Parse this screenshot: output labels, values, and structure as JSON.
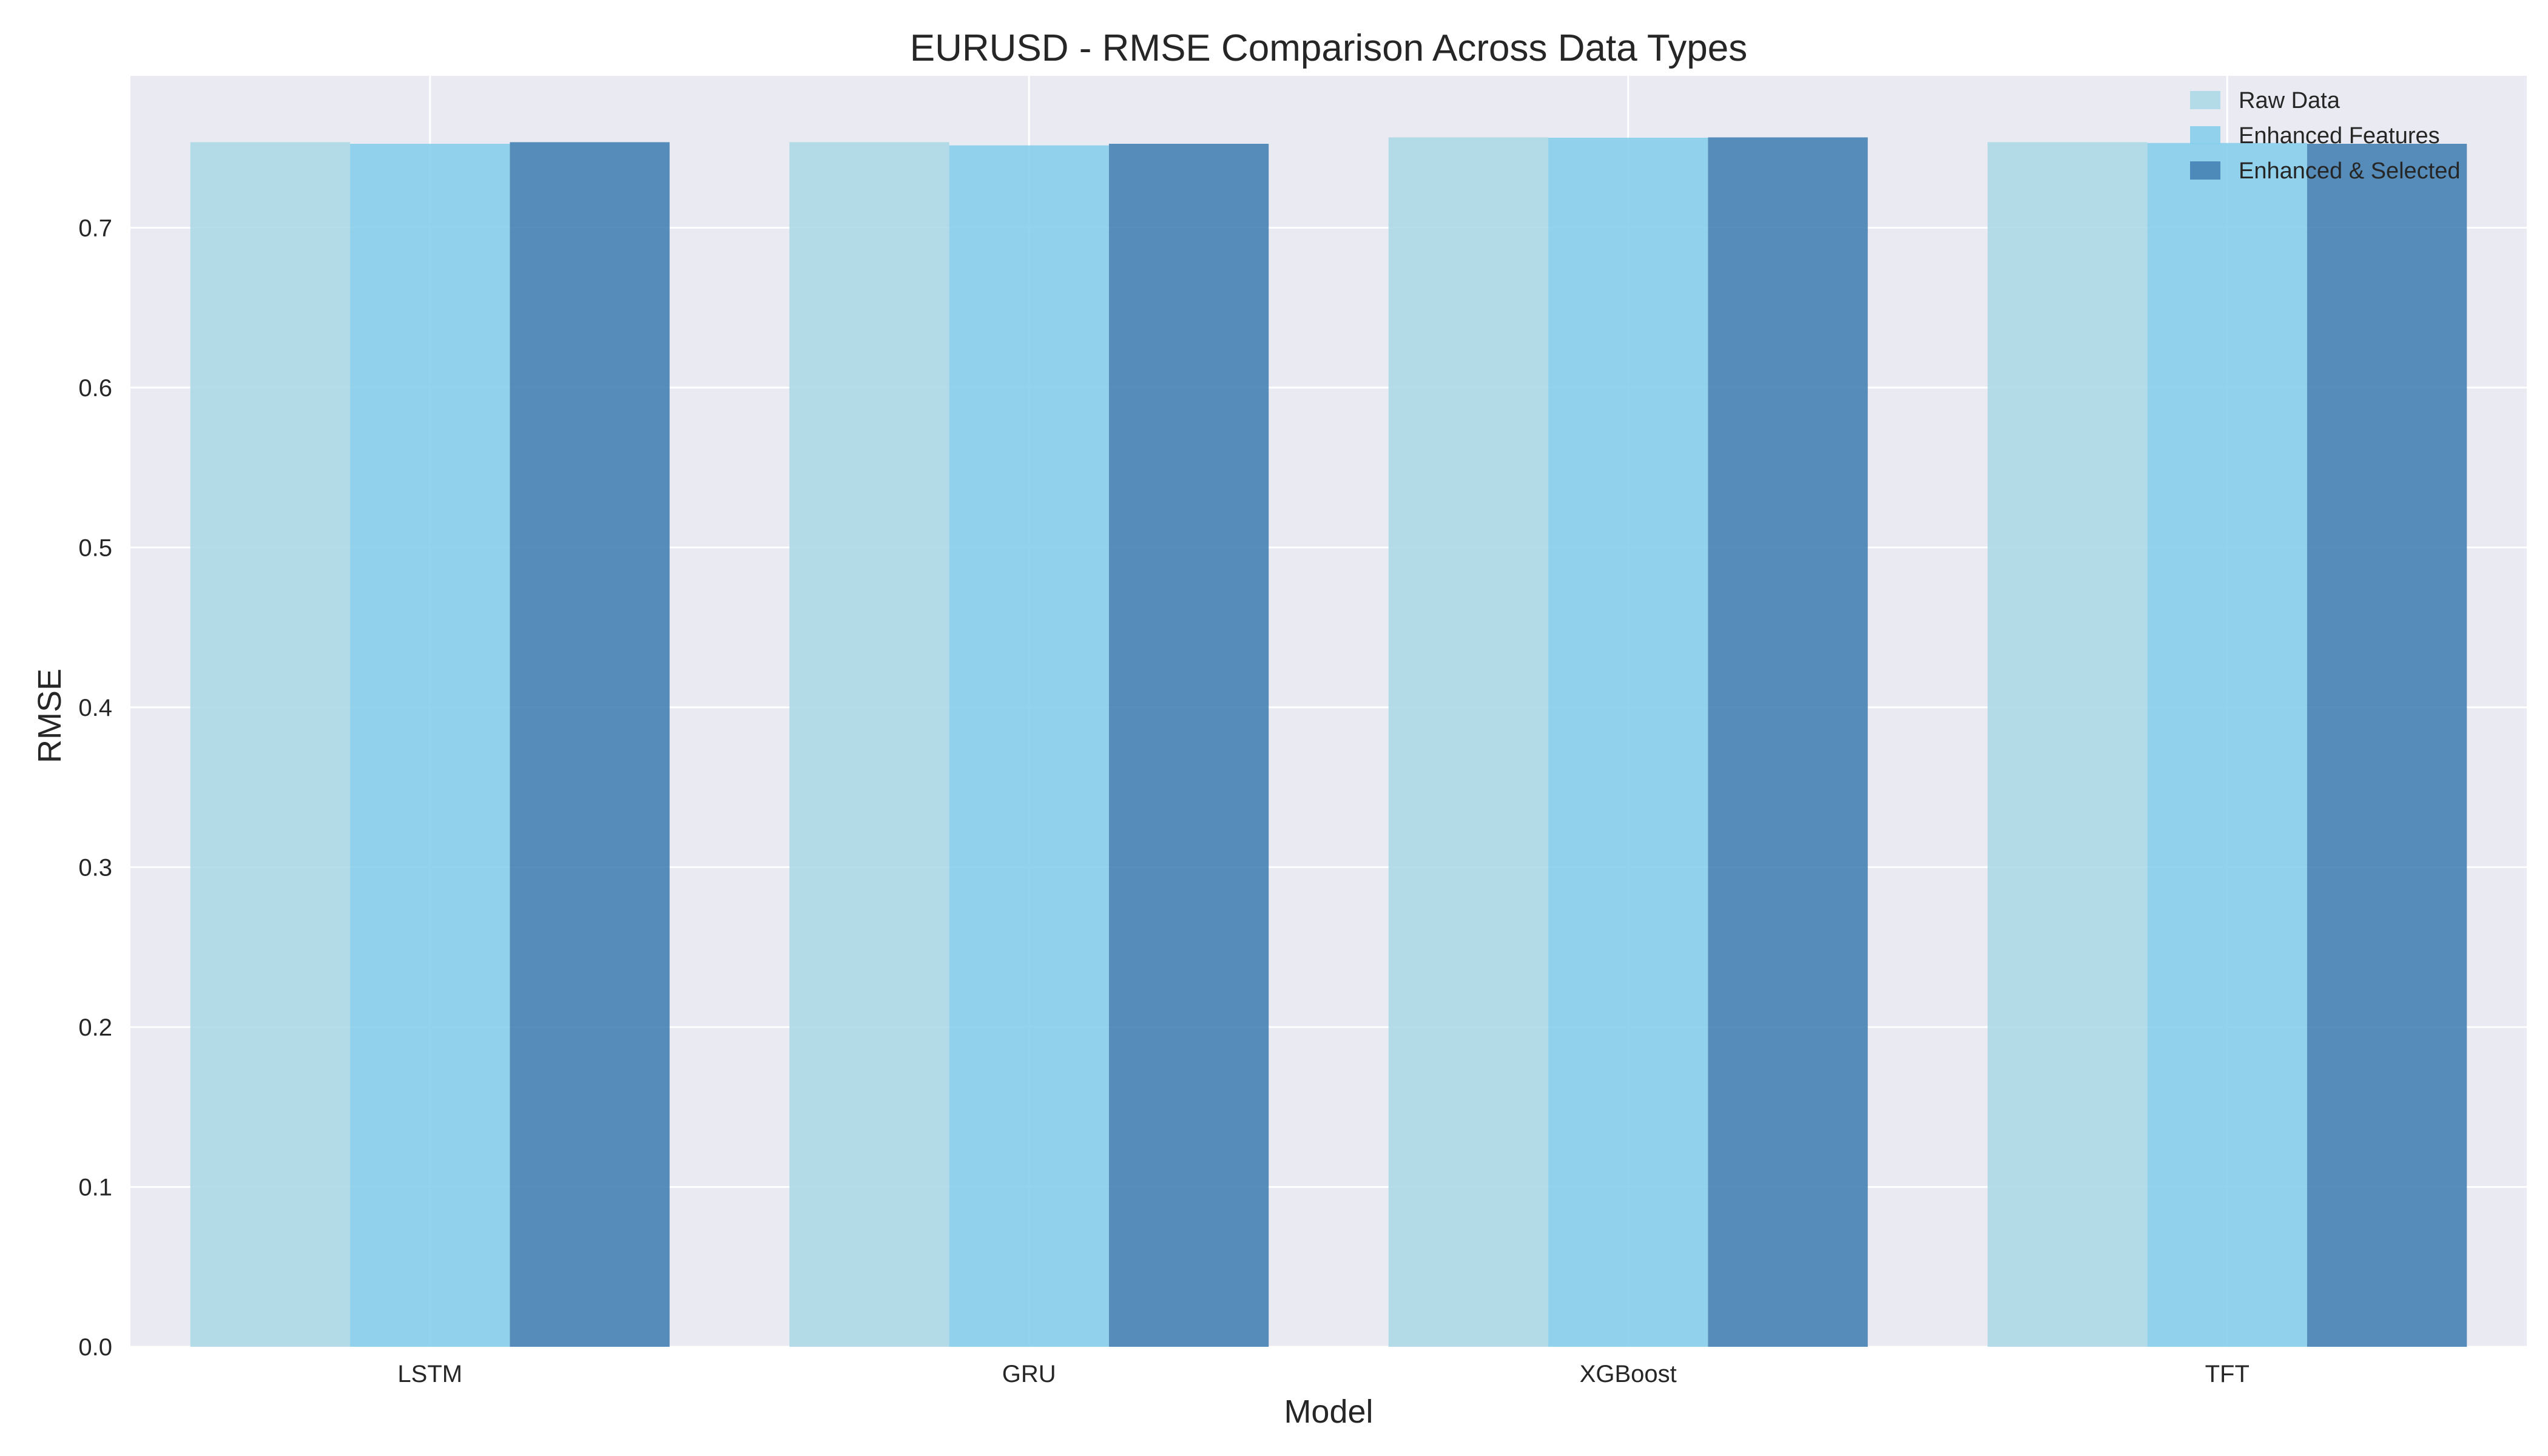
{
  "chart_data": {
    "type": "bar",
    "title": "EURUSD - RMSE Comparison Across Data Types",
    "xlabel": "Model",
    "ylabel": "RMSE",
    "categories": [
      "LSTM",
      "GRU",
      "XGBoost",
      "TFT"
    ],
    "series": [
      {
        "name": "Raw Data",
        "color": "#add8e6",
        "values": [
          0.7535,
          0.7535,
          0.7565,
          0.7535
        ]
      },
      {
        "name": "Enhanced Features",
        "color": "#87ceeb",
        "values": [
          0.7525,
          0.7515,
          0.7563,
          0.753
        ]
      },
      {
        "name": "Enhanced & Selected",
        "color": "#4682b4",
        "values": [
          0.7535,
          0.7525,
          0.7565,
          0.7525
        ]
      }
    ],
    "ylim": [
      0,
      0.795
    ],
    "yticks": [
      0.0,
      0.1,
      0.2,
      0.3,
      0.4,
      0.5,
      0.6,
      0.7
    ],
    "grid": true,
    "legend_position": "top-right",
    "background_color": "#eaeaf2"
  }
}
